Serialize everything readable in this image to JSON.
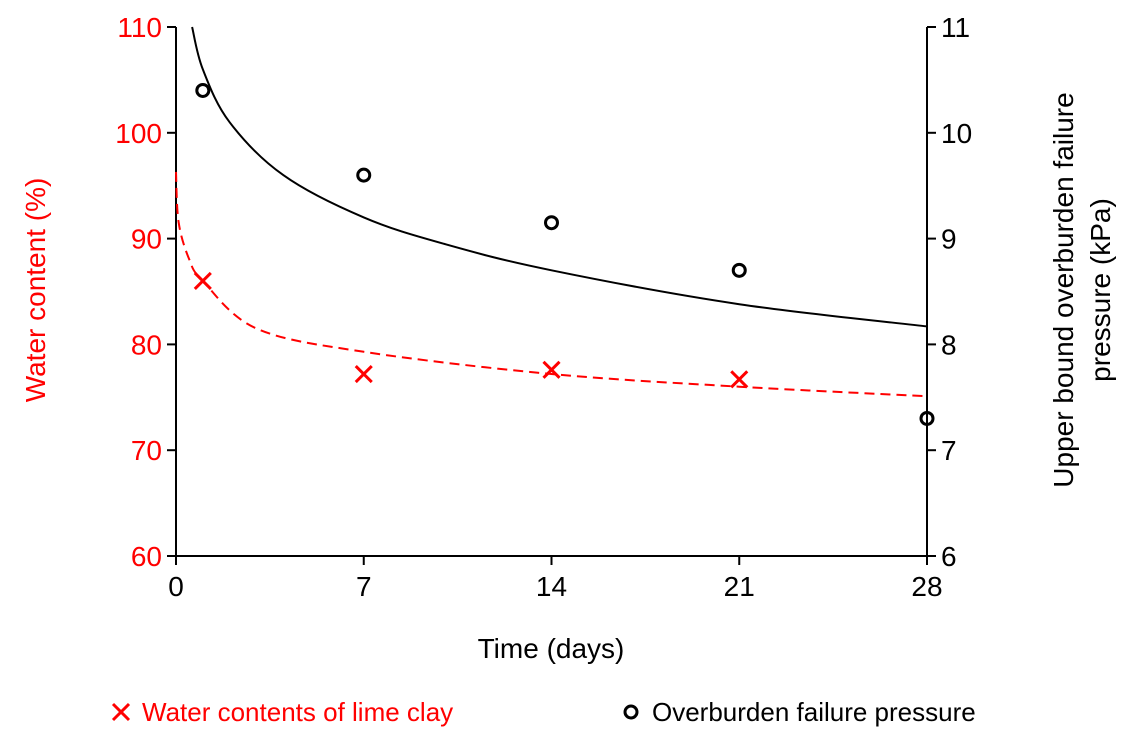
{
  "chart_data": {
    "type": "scatter",
    "x_axis": {
      "label": "Time (days)",
      "min": 0,
      "max": 28,
      "ticks": [
        "0",
        "7",
        "14",
        "21",
        "28"
      ],
      "tick_values": [
        0,
        7,
        14,
        21,
        28
      ]
    },
    "y_left": {
      "label": "Water content (%)",
      "min": 60,
      "max": 110,
      "ticks": [
        "60",
        "70",
        "80",
        "90",
        "100",
        "110"
      ],
      "tick_values": [
        60,
        70,
        80,
        90,
        100,
        110
      ],
      "color": "#ff0000"
    },
    "y_right": {
      "label_line1": "Upper bound overburden failure",
      "label_line2": "pressure (kPa)",
      "min": 6,
      "max": 11,
      "ticks": [
        "6",
        "7",
        "8",
        "9",
        "10",
        "11"
      ],
      "tick_values": [
        6,
        7,
        8,
        9,
        10,
        11
      ],
      "color": "#000000"
    },
    "series": [
      {
        "name": "Water contents of lime clay",
        "axis": "left",
        "marker": "x",
        "color": "#ff0000",
        "x": [
          1,
          7,
          14,
          21
        ],
        "y": [
          86,
          77.2,
          77.6,
          76.7
        ],
        "trend": {
          "style": "dashed",
          "samples": [
            [
              0,
              96.3
            ],
            [
              0.1,
              91.5
            ],
            [
              0.5,
              88
            ],
            [
              1,
              86
            ],
            [
              3,
              81.5
            ],
            [
              7,
              79.3
            ],
            [
              14,
              77.2
            ],
            [
              21,
              76
            ],
            [
              28,
              75.1
            ]
          ]
        }
      },
      {
        "name": "Overburden failure pressure",
        "axis": "right",
        "marker": "circle",
        "color": "#000000",
        "x": [
          1,
          7,
          14,
          21,
          28
        ],
        "y": [
          10.4,
          9.6,
          9.15,
          8.7,
          7.3
        ],
        "trend": {
          "style": "solid",
          "samples": [
            [
              0.6,
              11.0
            ],
            [
              1,
              10.6
            ],
            [
              2,
              10.1
            ],
            [
              4,
              9.6
            ],
            [
              7,
              9.2
            ],
            [
              10,
              8.95
            ],
            [
              14,
              8.7
            ],
            [
              21,
              8.38
            ],
            [
              28,
              8.17
            ]
          ]
        }
      }
    ],
    "legend": {
      "placement": "bottom",
      "entries": [
        "Water contents of lime clay",
        "Overburden failure pressure"
      ]
    }
  }
}
